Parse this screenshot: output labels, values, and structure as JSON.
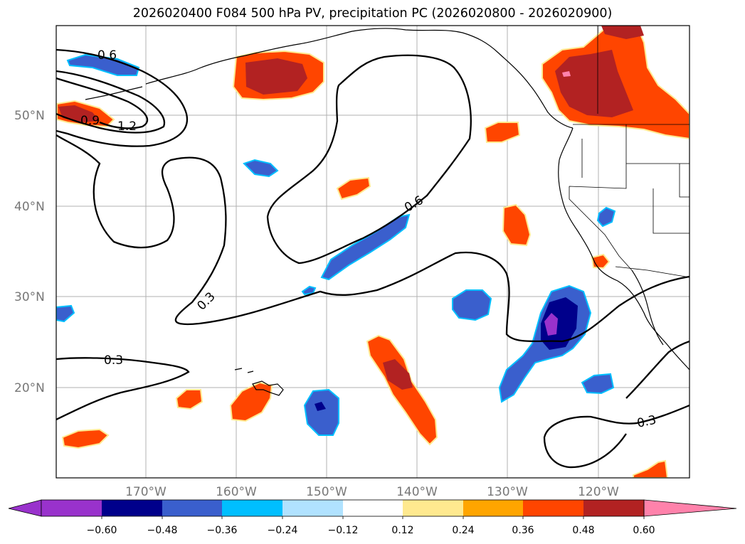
{
  "title": "2026020400 F084 500 hPa PV, precipitation PC (2026020800 - 2026020900)",
  "axes": {
    "lat_labels": [
      "50°N",
      "40°N",
      "30°N",
      "20°N"
    ],
    "lon_labels": [
      "170°W",
      "160°W",
      "150°W",
      "140°W",
      "130°W",
      "120°W"
    ]
  },
  "contour_labels": [
    "0.6",
    "0.9",
    "1.2",
    "0.3",
    "0.6",
    "0.3",
    "0.3"
  ],
  "colorbar": {
    "ticks": [
      "−0.60",
      "−0.48",
      "−0.36",
      "−0.24",
      "−0.12",
      "0.12",
      "0.24",
      "0.36",
      "0.48",
      "0.60"
    ],
    "colors": [
      "#9932cc",
      "#00008b",
      "#3a5fcd",
      "#00bfff",
      "#b0e2ff",
      "#ffffff",
      "#ffe98f",
      "#ffa500",
      "#ff4500",
      "#b22222",
      "#ff82ab"
    ]
  }
}
